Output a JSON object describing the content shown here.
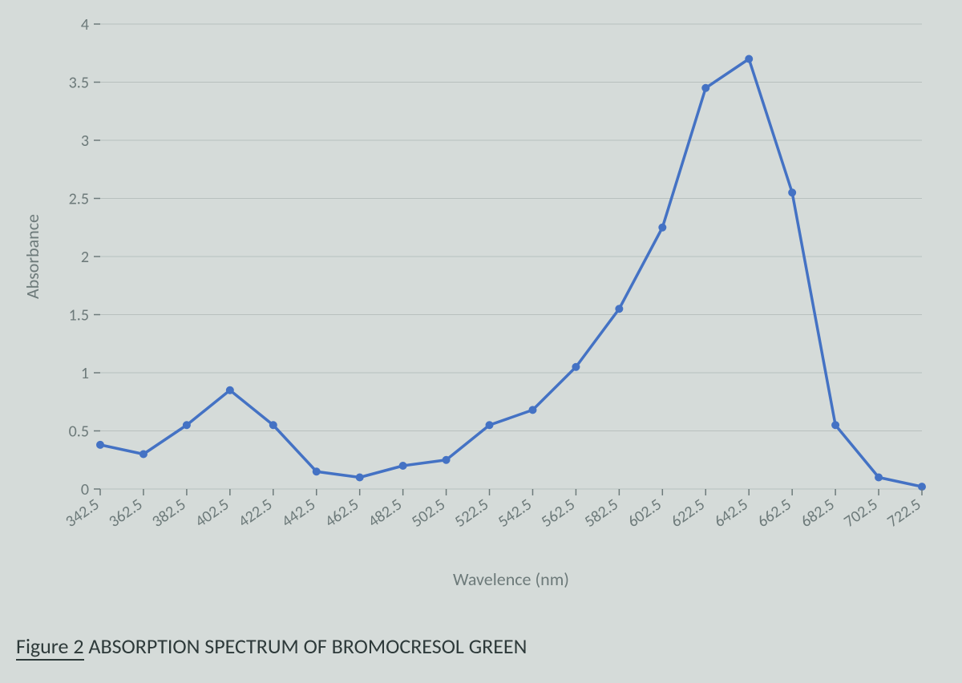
{
  "chart": {
    "type": "line",
    "x_values": [
      342.5,
      362.5,
      382.5,
      402.5,
      422.5,
      442.5,
      462.5,
      482.5,
      502.5,
      522.5,
      542.5,
      562.5,
      582.5,
      602.5,
      622.5,
      642.5,
      662.5,
      682.5,
      702.5,
      722.5
    ],
    "y_values": [
      0.38,
      0.3,
      0.55,
      0.85,
      0.55,
      0.15,
      0.1,
      0.2,
      0.25,
      0.55,
      0.68,
      1.05,
      1.55,
      2.25,
      3.45,
      3.7,
      2.55,
      0.55,
      0.1,
      0.02
    ],
    "xtick_labels": [
      "342.5",
      "362.5",
      "382.5",
      "402.5",
      "422.5",
      "442.5",
      "462.5",
      "482.5",
      "502.5",
      "522.5",
      "542.5",
      "562.5",
      "582.5",
      "602.5",
      "622.5",
      "642.5",
      "662.5",
      "682.5",
      "702.5",
      "722.5"
    ],
    "ylim": [
      0,
      4
    ],
    "ytick_step": 0.5,
    "ytick_labels": [
      "0",
      "0.5",
      "1",
      "1.5",
      "2",
      "2.5",
      "3",
      "3.5",
      "4"
    ],
    "xlabel": "Wavelence (nm)",
    "ylabel": "Absorbance",
    "line_color": "#4472c4",
    "line_width": 3.5,
    "marker_color": "#4472c4",
    "marker_radius": 5,
    "grid_color": "#b8c0be",
    "background_color": "#d5dbd9",
    "tick_label_color": "#6d7a7a",
    "axis_label_color": "#6d7a7a",
    "tick_fontsize": 20,
    "axis_label_fontsize": 22,
    "xtick_rotation": -35
  },
  "caption": {
    "prefix": "Figure 2",
    "body": "  ABSORPTION SPECTRUM OF BROMOCRESOL GREEN",
    "fontsize": 26,
    "text_color": "#2e3a3a",
    "underline_color": "#2e3a3a"
  }
}
